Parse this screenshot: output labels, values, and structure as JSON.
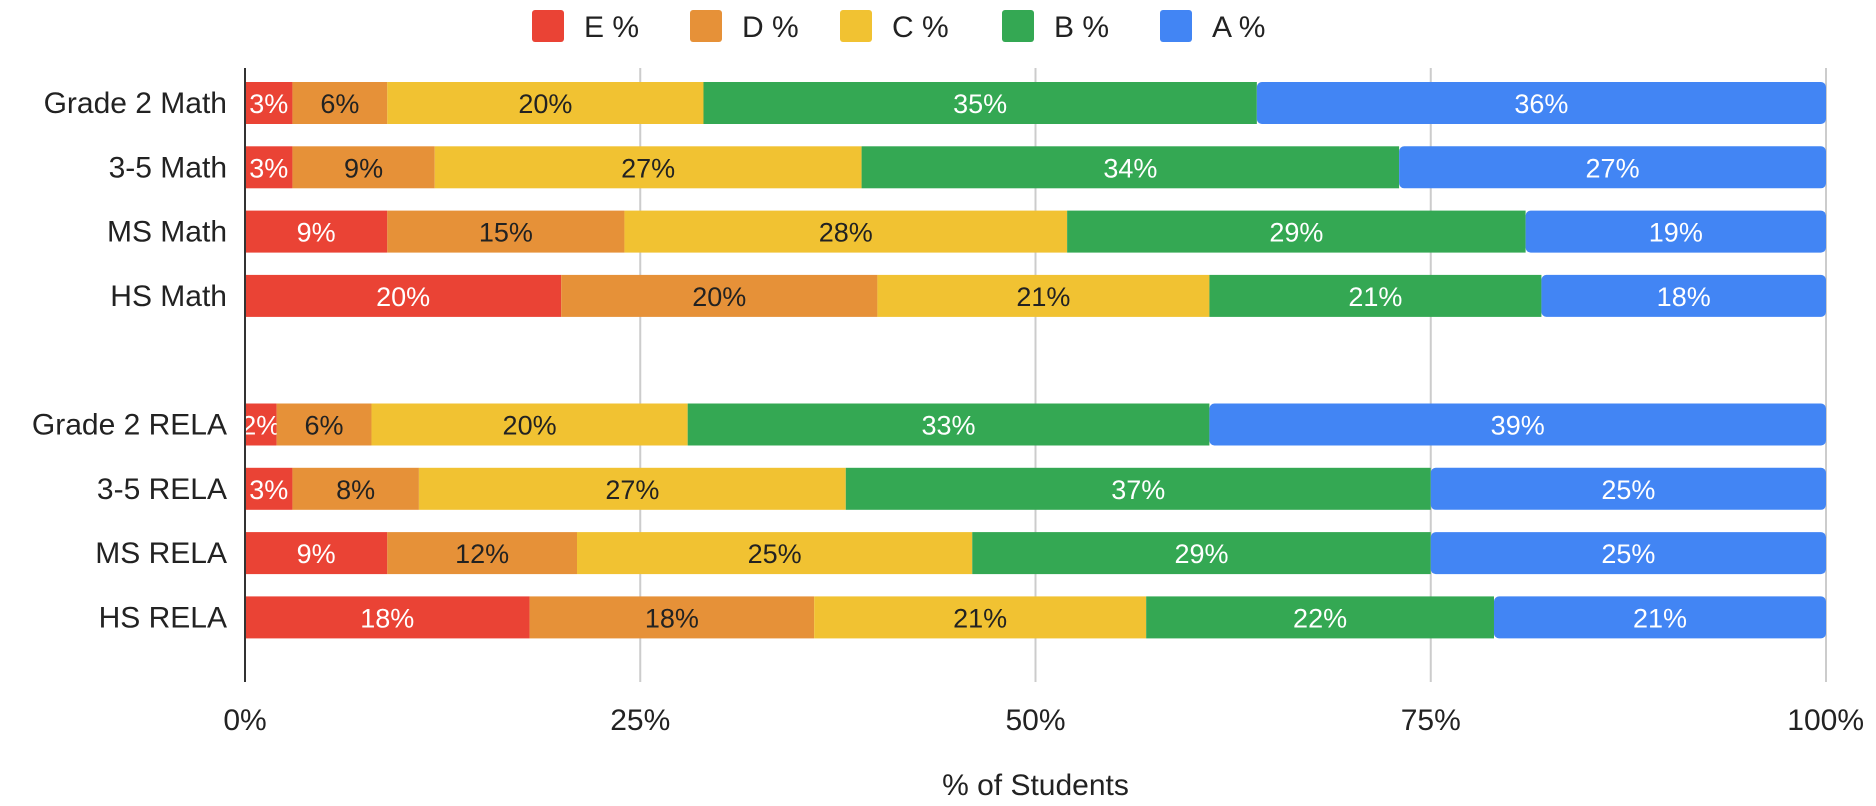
{
  "chart_data": {
    "type": "bar",
    "orientation": "horizontal",
    "stacked": true,
    "categories": [
      "Grade 2 Math",
      "3-5 Math",
      "MS Math",
      "HS Math",
      "",
      "Grade 2 RELA",
      "3-5 RELA",
      "MS RELA",
      "HS RELA"
    ],
    "series": [
      {
        "name": "E %",
        "color": "#ea4335",
        "label_color": "#ffffff",
        "values": [
          3,
          3,
          9,
          20,
          null,
          2,
          3,
          9,
          18
        ]
      },
      {
        "name": "D %",
        "color": "#e69138",
        "label_color": "#222222",
        "values": [
          6,
          9,
          15,
          20,
          null,
          6,
          8,
          12,
          18
        ]
      },
      {
        "name": "C %",
        "color": "#f1c232",
        "label_color": "#222222",
        "values": [
          20,
          27,
          28,
          21,
          null,
          20,
          27,
          25,
          21
        ]
      },
      {
        "name": "B %",
        "color": "#34a853",
        "label_color": "#ffffff",
        "values": [
          35,
          34,
          29,
          21,
          null,
          33,
          37,
          29,
          22
        ]
      },
      {
        "name": "A %",
        "color": "#4285f4",
        "label_color": "#ffffff",
        "values": [
          36,
          27,
          19,
          18,
          null,
          39,
          25,
          25,
          21
        ]
      }
    ],
    "title": "",
    "xlabel": "% of Students",
    "ylabel": "",
    "xlim": [
      0,
      100
    ],
    "x_ticks": [
      0,
      25,
      50,
      75,
      100
    ],
    "x_tick_labels": [
      "0%",
      "25%",
      "50%",
      "75%",
      "100%"
    ],
    "grid": true,
    "legend_position": "top-center"
  }
}
